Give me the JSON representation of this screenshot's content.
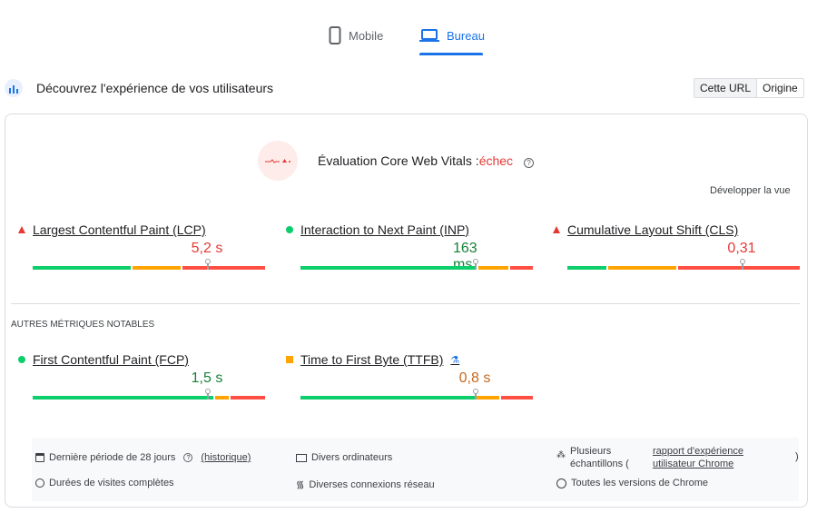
{
  "tabs": [
    {
      "label": "Mobile",
      "icon": "phone-icon",
      "active": false
    },
    {
      "label": "Bureau",
      "icon": "laptop-icon",
      "active": true
    }
  ],
  "header": {
    "title": "Découvrez l'expérience de vos utilisateurs",
    "icon": "crux-users-icon",
    "toggle": [
      "Cette URL",
      "Origine"
    ],
    "toggle_selected": "Cette URL"
  },
  "assessment": {
    "label": "Évaluation Core Web Vitals :",
    "status": "échec",
    "help_icon": "help-icon",
    "expand": "Développer la vue"
  },
  "colors": {
    "good": "#0cce6b",
    "needs_improvement": "#ffa400",
    "poor": "#ff4e42",
    "accent": "#1a73e8",
    "fail_text": "#e53935"
  },
  "core_metrics": [
    {
      "name": "Largest Contentful Paint (LCP)",
      "value": "5,2 s",
      "rating": "poor",
      "distribution": [
        43,
        21,
        36
      ],
      "marker": 0.75
    },
    {
      "name": "Interaction to Next Paint (INP)",
      "value": "163 ms",
      "rating": "good",
      "distribution": [
        77,
        13,
        10
      ],
      "marker": 0.75
    },
    {
      "name": "Cumulative Layout Shift (CLS)",
      "value": "0,31",
      "rating": "poor",
      "distribution": [
        17,
        30,
        53
      ],
      "marker": 0.75
    }
  ],
  "other_title": "AUTRES MÉTRIQUES NOTABLES",
  "other_metrics": [
    {
      "name": "First Contentful Paint (FCP)",
      "value": "1,5 s",
      "rating": "good",
      "distribution": [
        79,
        6,
        15
      ],
      "marker": 0.75
    },
    {
      "name": "Time to First Byte (TTFB)",
      "value": "0,8 s",
      "rating": "needs_improvement",
      "distribution": [
        76,
        10,
        14
      ],
      "marker": 0.75,
      "badge_icon": "experimental-flask-icon"
    }
  ],
  "footer": {
    "period": "Dernière période de 28 jours",
    "history": "(historique)",
    "durations": "Durées de visites complètes",
    "devices": "Divers ordinateurs",
    "network": "Diverses connexions réseau",
    "samples": "Plusieurs échantillons (",
    "report_link": "rapport d'expérience utilisateur Chrome",
    "close_paren": ")",
    "chrome": "Toutes les versions de Chrome"
  }
}
